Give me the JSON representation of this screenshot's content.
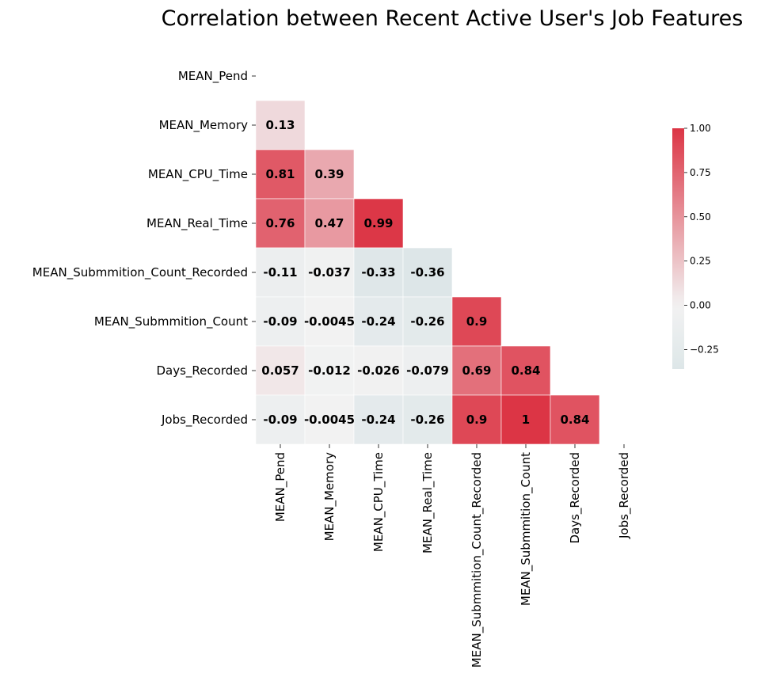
{
  "chart_data": {
    "type": "heatmap",
    "title": "Correlation between Recent Active User's Job Features",
    "row_labels": [
      "MEAN_Pend",
      "MEAN_Memory",
      "MEAN_CPU_Time",
      "MEAN_Real_Time",
      "MEAN_Submmition_Count_Recorded",
      "MEAN_Submmition_Count",
      "Days_Recorded",
      "Jobs_Recorded"
    ],
    "col_labels": [
      "MEAN_Pend",
      "MEAN_Memory",
      "MEAN_CPU_Time",
      "MEAN_Real_Time",
      "MEAN_Submmition_Count_Recorded",
      "MEAN_Submmition_Count",
      "Days_Recorded",
      "Jobs_Recorded"
    ],
    "mask": "upper triangle including diagonal",
    "values": [
      [
        null,
        null,
        null,
        null,
        null,
        null,
        null,
        null
      ],
      [
        0.13,
        null,
        null,
        null,
        null,
        null,
        null,
        null
      ],
      [
        0.81,
        0.39,
        null,
        null,
        null,
        null,
        null,
        null
      ],
      [
        0.76,
        0.47,
        0.99,
        null,
        null,
        null,
        null,
        null
      ],
      [
        -0.11,
        -0.037,
        -0.33,
        -0.36,
        null,
        null,
        null,
        null
      ],
      [
        -0.09,
        -0.0045,
        -0.24,
        -0.26,
        0.9,
        null,
        null,
        null
      ],
      [
        0.057,
        -0.012,
        -0.026,
        -0.079,
        0.69,
        0.84,
        null,
        null
      ],
      [
        -0.09,
        -0.0045,
        -0.24,
        -0.26,
        0.9,
        1,
        0.84,
        null
      ]
    ],
    "annotations": [
      [
        null,
        null,
        null,
        null,
        null,
        null,
        null,
        null
      ],
      [
        "0.13",
        null,
        null,
        null,
        null,
        null,
        null,
        null
      ],
      [
        "0.81",
        "0.39",
        null,
        null,
        null,
        null,
        null,
        null
      ],
      [
        "0.76",
        "0.47",
        "0.99",
        null,
        null,
        null,
        null,
        null
      ],
      [
        "-0.11",
        "-0.037",
        "-0.33",
        "-0.36",
        null,
        null,
        null,
        null
      ],
      [
        "-0.09",
        "-0.0045",
        "-0.24",
        "-0.26",
        "0.9",
        null,
        null,
        null
      ],
      [
        "0.057",
        "-0.012",
        "-0.026",
        "-0.079",
        "0.69",
        "0.84",
        null,
        null
      ],
      [
        "-0.09",
        "-0.0045",
        "-0.24",
        "-0.26",
        "0.9",
        "1",
        "0.84",
        null
      ]
    ],
    "colormap": {
      "vmin": -0.36,
      "vmax": 1.0,
      "center": 0,
      "negative_color": "#b9d2d7",
      "center_color": "#f2f2f2",
      "positive_color": "#dc3545"
    },
    "colorbar": {
      "ticks": [
        1.0,
        0.75,
        0.5,
        0.25,
        0.0,
        -0.25
      ],
      "tick_labels": [
        "1.00",
        "0.75",
        "0.50",
        "0.25",
        "0.00",
        "−0.25"
      ]
    },
    "grid": false,
    "cell_border_color": "#ffffff"
  }
}
